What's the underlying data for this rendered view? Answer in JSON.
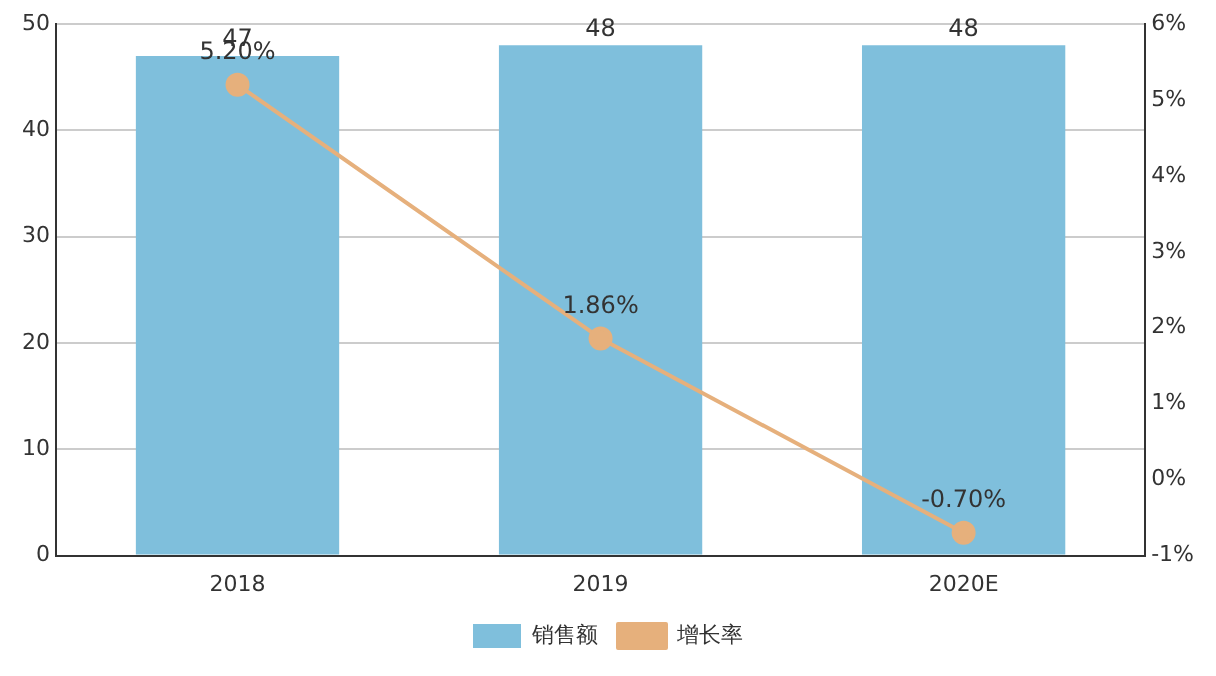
{
  "chart_data": {
    "type": "bar",
    "categories": [
      "2018",
      "2019",
      "2020E"
    ],
    "series": [
      {
        "name": "销售额",
        "color": "#7fbfdc",
        "values": [
          47,
          48,
          48
        ],
        "value_labels": [
          "47",
          "48",
          "48"
        ]
      },
      {
        "name": "增长率",
        "type": "line",
        "axis": "y2",
        "color": "#e6b07c",
        "values": [
          5.2,
          1.86,
          -0.7
        ],
        "value_labels": [
          "5.20%",
          "1.86%",
          "-0.70%"
        ],
        "marker": "circle"
      }
    ],
    "ylim": [
      0,
      50
    ],
    "yticks": [
      0,
      10,
      20,
      30,
      40,
      50
    ],
    "y2lim": [
      -1,
      6
    ],
    "y2ticks": [
      {
        "value": -1,
        "label": "-1%"
      },
      {
        "value": 0,
        "label": "0%"
      },
      {
        "value": 1,
        "label": "1%"
      },
      {
        "value": 2,
        "label": "2%"
      },
      {
        "value": 3,
        "label": "3%"
      },
      {
        "value": 4,
        "label": "4%"
      },
      {
        "value": 5,
        "label": "5%"
      },
      {
        "value": 6,
        "label": "6%"
      }
    ],
    "grid": "y",
    "legend": "bottom"
  }
}
